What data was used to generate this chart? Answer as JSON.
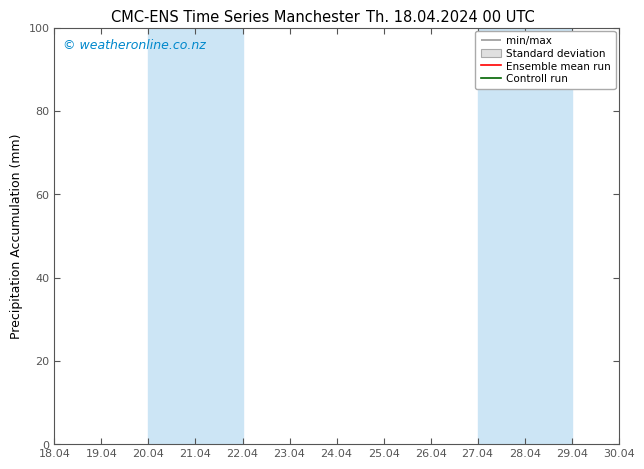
{
  "title": "CMC-ENS Time Series Manchester",
  "title2": "Th. 18.04.2024 00 UTC",
  "ylabel": "Precipitation Accumulation (mm)",
  "ylim": [
    0,
    100
  ],
  "xlim": [
    0,
    12
  ],
  "xtick_positions": [
    0,
    1,
    2,
    3,
    4,
    5,
    6,
    7,
    8,
    9,
    10,
    11,
    12
  ],
  "xtick_labels": [
    "18.04",
    "19.04",
    "20.04",
    "21.04",
    "22.04",
    "23.04",
    "24.04",
    "25.04",
    "26.04",
    "27.04",
    "28.04",
    "29.04",
    "30.04"
  ],
  "ytick_positions": [
    0,
    20,
    40,
    60,
    80,
    100
  ],
  "ytick_labels": [
    "0",
    "20",
    "40",
    "60",
    "80",
    "100"
  ],
  "shaded_bands": [
    {
      "xmin": 2,
      "xmax": 4,
      "color": "#cce5f5",
      "alpha": 1.0
    },
    {
      "xmin": 9,
      "xmax": 11,
      "color": "#cce5f5",
      "alpha": 1.0
    }
  ],
  "watermark": "© weatheronline.co.nz",
  "watermark_color": "#0088cc",
  "legend_labels": [
    "min/max",
    "Standard deviation",
    "Ensemble mean run",
    "Controll run"
  ],
  "legend_colors_handle": [
    "#999999",
    "#cccccc",
    "#ff0000",
    "#006400"
  ],
  "background_color": "#ffffff",
  "plot_bg_color": "#ffffff",
  "spine_color": "#555555",
  "title_fontsize": 10.5,
  "label_fontsize": 9,
  "tick_fontsize": 8,
  "watermark_fontsize": 9,
  "legend_fontsize": 7.5
}
